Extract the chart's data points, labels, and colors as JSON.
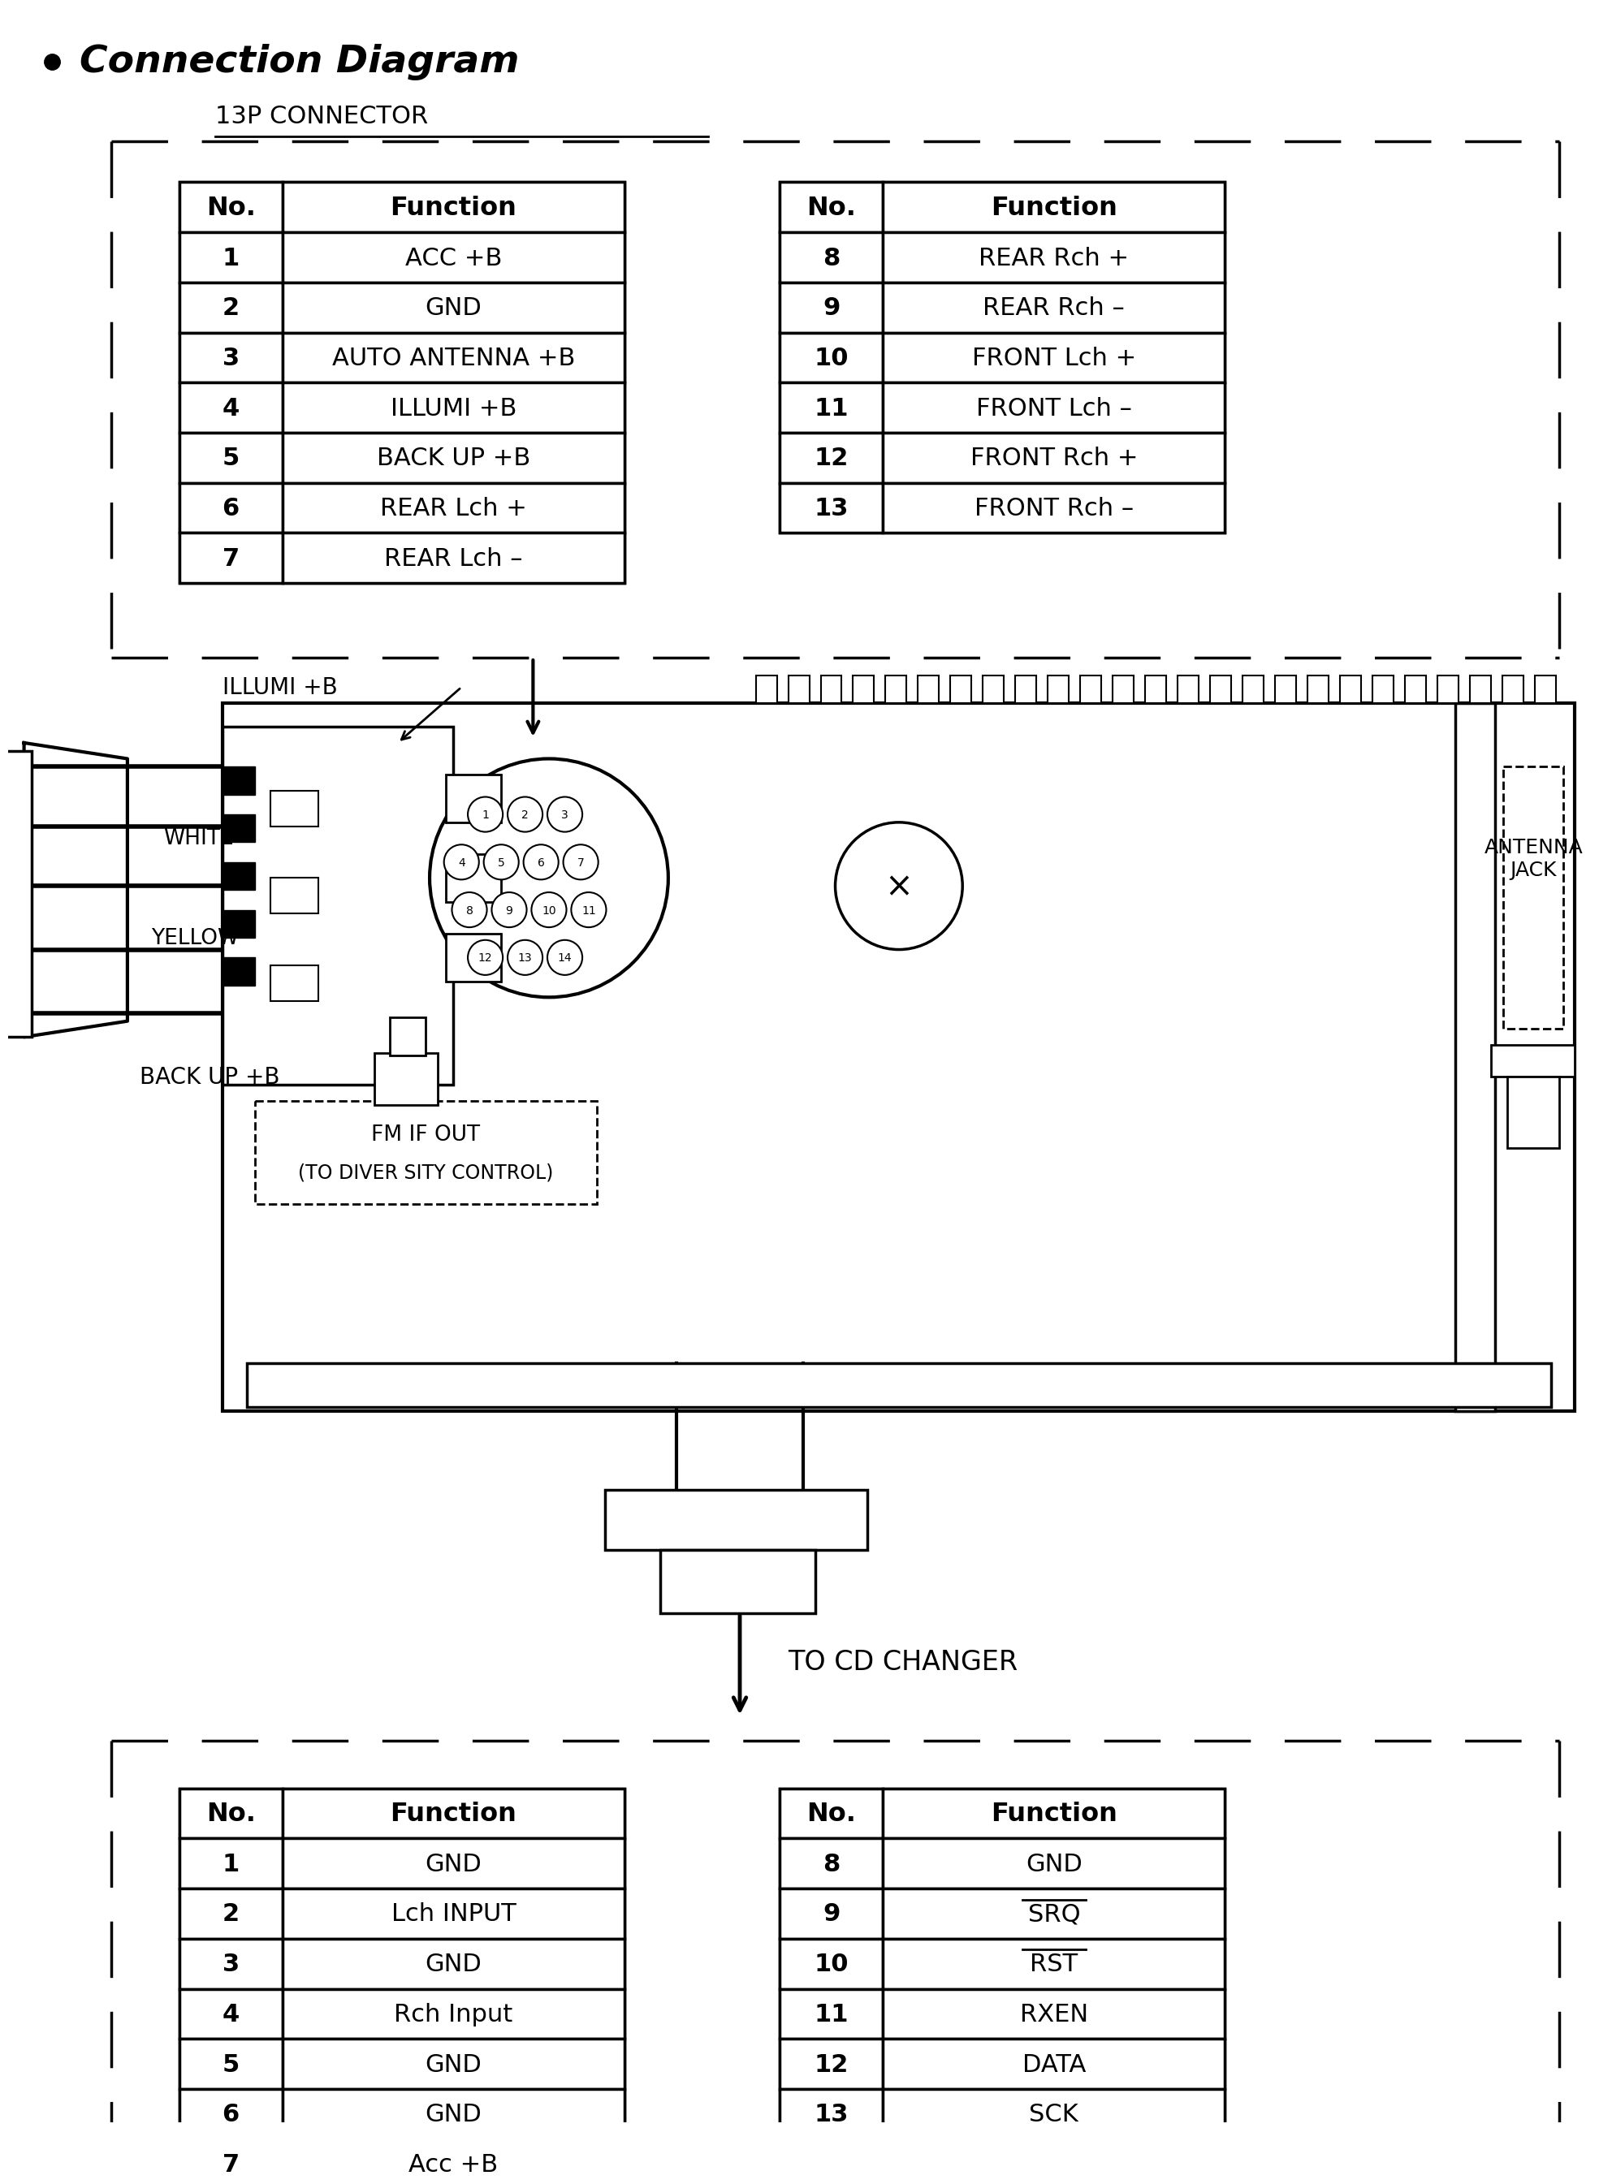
{
  "title": "Connection Diagram",
  "connector_label": "13P CONNECTOR",
  "top_table_left": {
    "headers": [
      "No.",
      "Function"
    ],
    "rows": [
      [
        "1",
        "ACC +B"
      ],
      [
        "2",
        "GND"
      ],
      [
        "3",
        "AUTO ANTENNA +B"
      ],
      [
        "4",
        "ILLUMI +B"
      ],
      [
        "5",
        "BACK UP +B"
      ],
      [
        "6",
        "REAR Lch +"
      ],
      [
        "7",
        "REAR Lch –"
      ]
    ]
  },
  "top_table_right": {
    "headers": [
      "No.",
      "Function"
    ],
    "rows": [
      [
        "8",
        "REAR Rch +"
      ],
      [
        "9",
        "REAR Rch –"
      ],
      [
        "10",
        "FRONT Lch +"
      ],
      [
        "11",
        "FRONT Lch –"
      ],
      [
        "12",
        "FRONT Rch +"
      ],
      [
        "13",
        "FRONT Rch –"
      ]
    ]
  },
  "cd_changer_label": "TO CD CHANGER",
  "bottom_table_left": {
    "headers": [
      "No.",
      "Function"
    ],
    "rows": [
      [
        "1",
        "GND"
      ],
      [
        "2",
        "Lch INPUT"
      ],
      [
        "3",
        "GND"
      ],
      [
        "4",
        "Rch Input"
      ],
      [
        "5",
        "GND"
      ],
      [
        "6",
        "GND"
      ],
      [
        "7",
        "Acc +B"
      ]
    ]
  },
  "bottom_table_right": {
    "headers": [
      "No.",
      "Function"
    ],
    "rows": [
      [
        "8",
        "GND"
      ],
      [
        "9",
        "SRQ"
      ],
      [
        "10",
        "RST"
      ],
      [
        "11",
        "RXEN"
      ],
      [
        "12",
        "DATA"
      ],
      [
        "13",
        "SCK"
      ]
    ]
  },
  "labels": {
    "illumi": "ILLUMI +B",
    "white": "WHITE",
    "yellow": "YELLOW",
    "backup": "BACK UP +B",
    "fm_if_out": "FM IF OUT",
    "diversity": "(TO DIVER SITY CONTROL)",
    "antenna_jack": "ANTENNA\nJACK"
  },
  "bg_color": "#ffffff",
  "text_color": "#000000",
  "line_color": "#000000"
}
